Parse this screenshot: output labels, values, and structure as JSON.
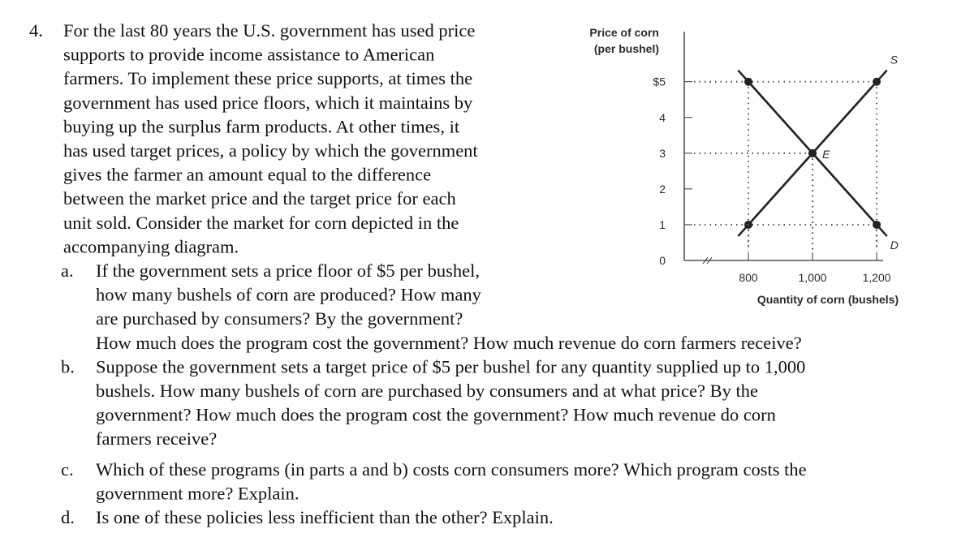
{
  "question": {
    "number": "4.",
    "lines": [
      "For the last 80 years the U.S. government has used price",
      "supports to provide income assistance to American",
      "farmers. To implement these price supports, at times the",
      "government has used price floors, which it maintains by",
      "buying up the surplus farm products. At other times, it",
      "has used target prices, a policy by which the government",
      "gives the farmer an amount equal to the difference",
      "between the market price and the target price for each",
      "unit sold. Consider the market for corn depicted in the",
      "accompanying diagram."
    ],
    "parts": [
      {
        "label": "a.",
        "lines": [
          "If the government sets a price floor of $5 per bushel,",
          "how many bushels of corn are produced? How many",
          "are purchased by consumers? By the government?",
          "How much does the program cost the government? How much revenue do corn farmers receive?"
        ]
      },
      {
        "label": "b.",
        "lines": [
          "Suppose the government sets a target price of $5 per bushel for any quantity supplied up to 1,000",
          "bushels. How many bushels of corn are purchased by consumers and at what price? By the",
          "government? How much does the program cost the government? How much revenue do corn",
          "farmers receive?"
        ]
      },
      {
        "label": "c.",
        "lines": [
          "Which of these programs (in parts a and b) costs corn consumers more? Which program costs the",
          "government more? Explain."
        ]
      },
      {
        "label": "d.",
        "lines": [
          "Is one of these policies less inefficient than the other? Explain."
        ]
      }
    ]
  },
  "chart_data": {
    "type": "line",
    "ylabel": [
      "Price of corn",
      "(per bushel)"
    ],
    "xlabel": "Quantity of corn (bushels)",
    "x": [
      800,
      1000,
      1200
    ],
    "series": [
      {
        "name": "S",
        "color": "#222222",
        "values": [
          1,
          3,
          5
        ]
      },
      {
        "name": "D",
        "color": "#222222",
        "values": [
          5,
          3,
          1
        ]
      }
    ],
    "annotation": {
      "text": "E",
      "x": 1000,
      "y": 3
    },
    "xlim": [
      600,
      1220
    ],
    "xticks": [
      800,
      {
        "value": 1000,
        "label": "1,000"
      },
      {
        "value": 1200,
        "label": "1,200"
      }
    ],
    "ylim": [
      0,
      6.4
    ],
    "yticks": [
      0,
      1,
      2,
      3,
      4,
      {
        "value": 5,
        "label": "$5"
      }
    ]
  }
}
